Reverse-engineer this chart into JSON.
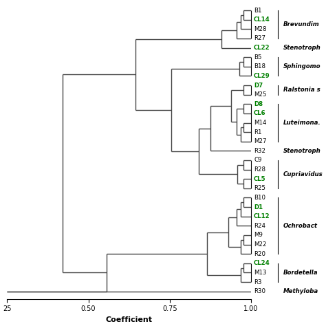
{
  "leaves": [
    "B1",
    "CL14",
    "M28",
    "R27",
    "CL22",
    "B5",
    "B18",
    "CL29",
    "D7",
    "M25",
    "D8",
    "CL6",
    "M14",
    "R1",
    "M27",
    "R32",
    "C9",
    "R28",
    "CL5",
    "R25",
    "B10",
    "D1",
    "CL12",
    "R24",
    "M9",
    "M22",
    "R20",
    "CL24",
    "M13",
    "R3",
    "R30"
  ],
  "leaf_colors": [
    "black",
    "green",
    "black",
    "black",
    "green",
    "black",
    "black",
    "green",
    "green",
    "black",
    "green",
    "green",
    "black",
    "black",
    "black",
    "black",
    "black",
    "black",
    "green",
    "black",
    "black",
    "green",
    "green",
    "black",
    "black",
    "black",
    "black",
    "green",
    "black",
    "black",
    "black"
  ],
  "bracket_groups": [
    [
      0,
      3,
      "Brevundim"
    ],
    [
      4,
      4,
      "Stenotroph"
    ],
    [
      5,
      7,
      "Sphingomo"
    ],
    [
      8,
      9,
      "Ralstonia s"
    ],
    [
      10,
      14,
      "Luteimona."
    ],
    [
      15,
      15,
      "Stenotroph"
    ],
    [
      16,
      19,
      "Cupriavidus"
    ],
    [
      20,
      26,
      "Ochrobact"
    ],
    [
      27,
      29,
      "Bordetella"
    ],
    [
      30,
      30,
      "Methyloba"
    ]
  ],
  "x_axis_label": "Coefficient",
  "coeff_min": 0.25,
  "coeff_max": 1.0,
  "background_color": "white",
  "line_color": "#444444",
  "line_width": 1.0
}
